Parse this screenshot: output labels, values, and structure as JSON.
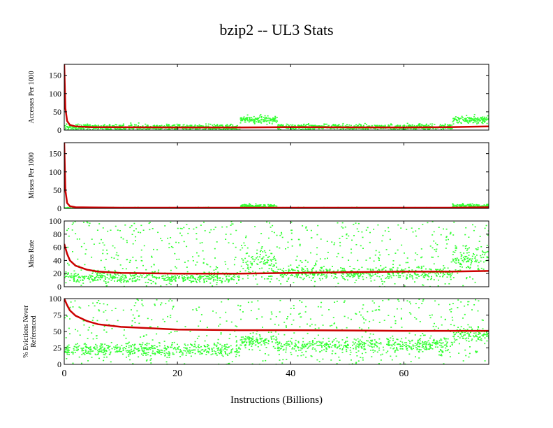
{
  "chart_data": {
    "type": "scatter",
    "title": "bzip2 -- UL3  Stats",
    "xlabel": "Instructions (Billions)",
    "xlim": [
      0,
      75
    ],
    "x_ticks": [
      "0",
      "20",
      "40",
      "60"
    ],
    "x_tick_values": [
      0,
      20,
      40,
      60
    ],
    "colors": {
      "points": "#33ff33",
      "average_line": "#cc0000"
    },
    "panels": [
      {
        "ylabel": [
          "Accesses Per 1000"
        ],
        "ylim": [
          0,
          180
        ],
        "y_ticks": [
          "0",
          "50",
          "100",
          "150"
        ],
        "y_tick_values": [
          0,
          50,
          100,
          150
        ],
        "phases": [
          {
            "x": [
              0,
              31
            ],
            "center": 9,
            "spread": 8,
            "outlier_rate": 0.0
          },
          {
            "x": [
              31,
              37.5
            ],
            "center": 30,
            "spread": 10,
            "outlier_rate": 0.0
          },
          {
            "x": [
              37.5,
              68.5
            ],
            "center": 10,
            "spread": 8,
            "outlier_rate": 0.0
          },
          {
            "x": [
              68.5,
              75
            ],
            "center": 30,
            "spread": 10,
            "outlier_rate": 0.0
          }
        ],
        "average_line": [
          [
            0,
            180
          ],
          [
            0.2,
            60
          ],
          [
            0.5,
            25
          ],
          [
            1,
            14
          ],
          [
            2,
            10
          ],
          [
            5,
            8
          ],
          [
            20,
            7
          ],
          [
            31,
            7
          ],
          [
            40,
            8
          ],
          [
            60,
            7
          ],
          [
            68,
            8
          ],
          [
            75,
            10
          ]
        ]
      },
      {
        "ylabel": [
          "Misses Per 1000"
        ],
        "ylim": [
          0,
          180
        ],
        "y_ticks": [
          "0",
          "50",
          "100",
          "150"
        ],
        "y_tick_values": [
          0,
          50,
          100,
          150
        ],
        "phases": [
          {
            "x": [
              0,
              31
            ],
            "center": 2,
            "spread": 2,
            "outlier_rate": 0.0
          },
          {
            "x": [
              31,
              37.5
            ],
            "center": 8,
            "spread": 5,
            "outlier_rate": 0.0
          },
          {
            "x": [
              37.5,
              68.5
            ],
            "center": 2,
            "spread": 2,
            "outlier_rate": 0.0
          },
          {
            "x": [
              68.5,
              75
            ],
            "center": 8,
            "spread": 6,
            "outlier_rate": 0.0
          }
        ],
        "average_line": [
          [
            0,
            180
          ],
          [
            0.2,
            50
          ],
          [
            0.5,
            15
          ],
          [
            1,
            6
          ],
          [
            2,
            3
          ],
          [
            10,
            2
          ],
          [
            31,
            2
          ],
          [
            40,
            2
          ],
          [
            68,
            2
          ],
          [
            75,
            3
          ]
        ]
      },
      {
        "ylabel": [
          "Miss Rate"
        ],
        "ylim": [
          0,
          100
        ],
        "y_ticks": [
          "0",
          "20",
          "40",
          "60",
          "80",
          "100"
        ],
        "y_tick_values": [
          0,
          20,
          40,
          60,
          80,
          100
        ],
        "phases": [
          {
            "x": [
              0,
              31
            ],
            "center": 15,
            "spread": 8,
            "outlier_rate": 0.35
          },
          {
            "x": [
              31,
              37.5
            ],
            "center": 38,
            "spread": 22,
            "outlier_rate": 0.3
          },
          {
            "x": [
              37.5,
              68.5
            ],
            "center": 22,
            "spread": 9,
            "outlier_rate": 0.35
          },
          {
            "x": [
              68.5,
              75
            ],
            "center": 45,
            "spread": 20,
            "outlier_rate": 0.3
          }
        ],
        "average_line": [
          [
            0,
            65
          ],
          [
            0.5,
            50
          ],
          [
            1,
            40
          ],
          [
            2,
            32
          ],
          [
            4,
            26
          ],
          [
            6,
            23
          ],
          [
            10,
            21
          ],
          [
            20,
            20
          ],
          [
            31,
            20
          ],
          [
            40,
            21
          ],
          [
            50,
            22
          ],
          [
            60,
            23
          ],
          [
            68,
            23
          ],
          [
            75,
            24
          ]
        ]
      },
      {
        "ylabel": [
          "% Evictions Never",
          "Referenced"
        ],
        "ylim": [
          0,
          100
        ],
        "y_ticks": [
          "0",
          "25",
          "50",
          "75",
          "100"
        ],
        "y_tick_values": [
          0,
          25,
          50,
          75,
          100
        ],
        "phases": [
          {
            "x": [
              0,
              31
            ],
            "center": 23,
            "spread": 10,
            "outlier_rate": 0.35
          },
          {
            "x": [
              31,
              37.5
            ],
            "center": 37,
            "spread": 10,
            "outlier_rate": 0.25
          },
          {
            "x": [
              37.5,
              68.5
            ],
            "center": 30,
            "spread": 10,
            "outlier_rate": 0.35
          },
          {
            "x": [
              68.5,
              75
            ],
            "center": 47,
            "spread": 12,
            "outlier_rate": 0.3
          }
        ],
        "average_line": [
          [
            0,
            100
          ],
          [
            0.5,
            90
          ],
          [
            1,
            82
          ],
          [
            2,
            74
          ],
          [
            4,
            66
          ],
          [
            6,
            61
          ],
          [
            10,
            57
          ],
          [
            15,
            55
          ],
          [
            20,
            53
          ],
          [
            31,
            52
          ],
          [
            40,
            52
          ],
          [
            60,
            51
          ],
          [
            68,
            51
          ],
          [
            75,
            51
          ]
        ]
      }
    ]
  }
}
